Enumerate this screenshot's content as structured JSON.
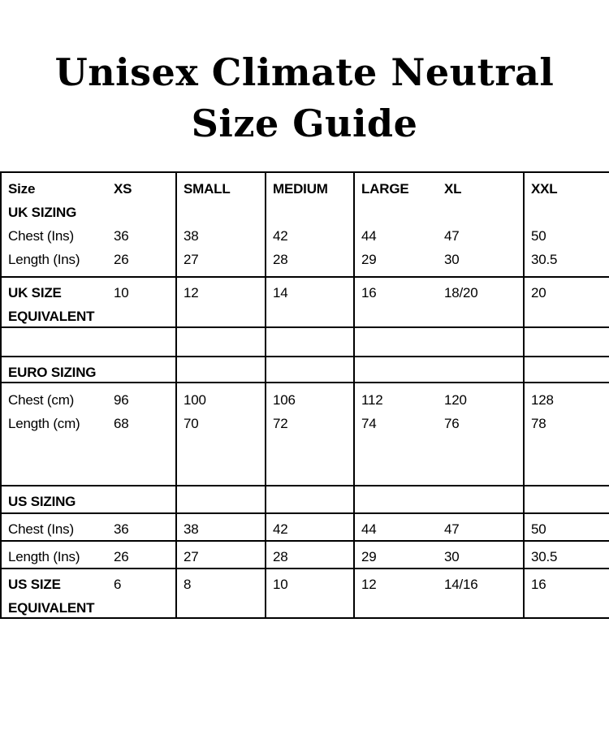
{
  "title": {
    "line1": "Unisex Climate Neutral",
    "line2": "Size Guide"
  },
  "colors": {
    "background": "#ffffff",
    "text": "#000000",
    "border": "#000000"
  },
  "table": {
    "header": {
      "size": "Size",
      "xs": "XS",
      "small": "SMALL",
      "medium": "MEDIUM",
      "large": "LARGE",
      "xl": "XL",
      "xxl": "XXL"
    },
    "uk": {
      "section": "UK SIZING",
      "chest_label": "Chest (Ins)",
      "chest": [
        "36",
        "38",
        "42",
        "44",
        "47",
        "50"
      ],
      "length_label": "Length (Ins)",
      "length": [
        "26",
        "27",
        "28",
        "29",
        "30",
        "30.5"
      ],
      "equiv_line1": "UK SIZE",
      "equiv_line2": "EQUIVALENT",
      "equiv": [
        "10",
        "12",
        "14",
        "16",
        "18/20",
        "20"
      ]
    },
    "euro": {
      "section": "EURO SIZING",
      "chest_label": "Chest (cm)",
      "chest": [
        "96",
        "100",
        "106",
        "112",
        "120",
        "128"
      ],
      "length_label": "Length (cm)",
      "length": [
        "68",
        "70",
        "72",
        "74",
        "76",
        "78"
      ]
    },
    "us": {
      "section": "US SIZING",
      "chest_label": "Chest (Ins)",
      "chest": [
        "36",
        "38",
        "42",
        "44",
        "47",
        "50"
      ],
      "length_label": "Length (Ins)",
      "length": [
        "26",
        "27",
        "28",
        "29",
        "30",
        "30.5"
      ],
      "equiv_line1": "US SIZE",
      "equiv_line2": "EQUIVALENT",
      "equiv": [
        "6",
        "8",
        "10",
        "12",
        "14/16",
        "16"
      ]
    }
  }
}
